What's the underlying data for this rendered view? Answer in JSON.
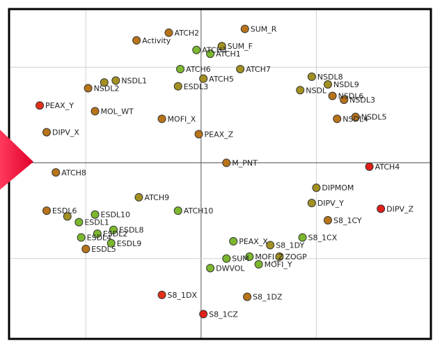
{
  "chart_data": {
    "type": "scatter",
    "labels": [
      "ATCH2",
      "Activity",
      "SUM_R",
      "SUM_F",
      "ATCH3",
      "ATCH1",
      "ATCH6",
      "ATCH7",
      "ATCH5",
      "ESDL3",
      "NSDL2",
      null,
      "NSDL1",
      "NSDL8",
      "NSDL9",
      "NSDL",
      "NSDL6",
      "NSDL3",
      "NSDL5",
      "NSDL4",
      "PEAX_Y",
      "MOL_WT",
      "MOFI_X",
      "DIPV_X",
      "PEAX_Z",
      "M_PNT",
      "ATCH4",
      "ATCH8",
      "DIPMOM",
      "ATCH9",
      "DIPV_Y",
      "DIPV_Z",
      "ATCH10",
      "S8_1CY",
      "ESDL6",
      null,
      "ESDL1",
      "ESDL10",
      "ESDL8",
      "ESDL2",
      "ESDL4",
      "ESDL9",
      "ESDL5",
      "PEAX_X",
      "S8_1DY",
      "S8_1CX",
      "SUM",
      "MOFI_Z",
      "ZOGP",
      "MOFI_Y",
      "DWVOL",
      "S8_1DX",
      "S8_1DZ",
      "S8_1CZ"
    ],
    "x": [
      -0.14,
      -0.28,
      0.19,
      0.09,
      -0.02,
      0.04,
      -0.09,
      0.17,
      0.01,
      -0.1,
      -0.49,
      -0.42,
      -0.37,
      0.48,
      0.55,
      0.43,
      0.57,
      0.62,
      0.67,
      0.59,
      -0.7,
      -0.46,
      -0.17,
      -0.67,
      -0.01,
      0.11,
      0.73,
      -0.63,
      0.5,
      -0.27,
      0.48,
      0.78,
      -0.1,
      0.55,
      -0.67,
      -0.58,
      -0.53,
      -0.46,
      -0.38,
      -0.45,
      -0.52,
      -0.39,
      -0.5,
      0.14,
      0.3,
      0.44,
      0.11,
      0.21,
      0.34,
      0.25,
      0.04,
      -0.17,
      0.2,
      0.01
    ],
    "values": [
      0.68,
      0.64,
      0.7,
      0.61,
      0.59,
      0.57,
      0.49,
      0.49,
      0.44,
      0.4,
      0.39,
      0.42,
      0.43,
      0.45,
      0.41,
      0.38,
      0.35,
      0.33,
      0.24,
      0.23,
      0.3,
      0.27,
      0.23,
      0.16,
      0.15,
      0.0,
      -0.02,
      -0.05,
      -0.13,
      -0.18,
      -0.21,
      -0.24,
      -0.25,
      -0.3,
      -0.25,
      -0.28,
      -0.31,
      -0.27,
      -0.35,
      -0.37,
      -0.39,
      -0.42,
      -0.45,
      -0.41,
      -0.43,
      -0.39,
      -0.5,
      -0.49,
      -0.49,
      -0.53,
      -0.55,
      -0.69,
      -0.7,
      -0.79
    ],
    "colors": [
      "#b8741a",
      "#b8741a",
      "#b8741a",
      "#a39022",
      "#7cb82f",
      "#7cb82f",
      "#7cb82f",
      "#a39022",
      "#a39022",
      "#a39022",
      "#b8741a",
      "#a39022",
      "#a39022",
      "#a39022",
      "#a39022",
      "#a39022",
      "#b8741a",
      "#b8741a",
      "#b8741a",
      "#b8741a",
      "#e0301a",
      "#b8741a",
      "#b8741a",
      "#b8741a",
      "#b8741a",
      "#b8741a",
      "#e0201a",
      "#b8741a",
      "#a39022",
      "#a39022",
      "#a39022",
      "#e0201a",
      "#7cb82f",
      "#b8741a",
      "#b8741a",
      "#a39022",
      "#7cb82f",
      "#7cb82f",
      "#7cb82f",
      "#7cb82f",
      "#7cb82f",
      "#7cb82f",
      "#b8741a",
      "#7cb82f",
      "#a39022",
      "#7cb82f",
      "#7cb82f",
      "#7cb82f",
      "#a39022",
      "#7cb82f",
      "#7cb82f",
      "#e0301a",
      "#b8741a",
      "#e0201a"
    ],
    "xlim": [
      -0.83,
      1.0
    ],
    "ylim": [
      -0.92,
      0.8
    ],
    "xticks": [
      -0.5,
      0,
      0.5
    ],
    "yticks": [
      -0.5,
      0,
      0.5
    ],
    "grid": true
  }
}
